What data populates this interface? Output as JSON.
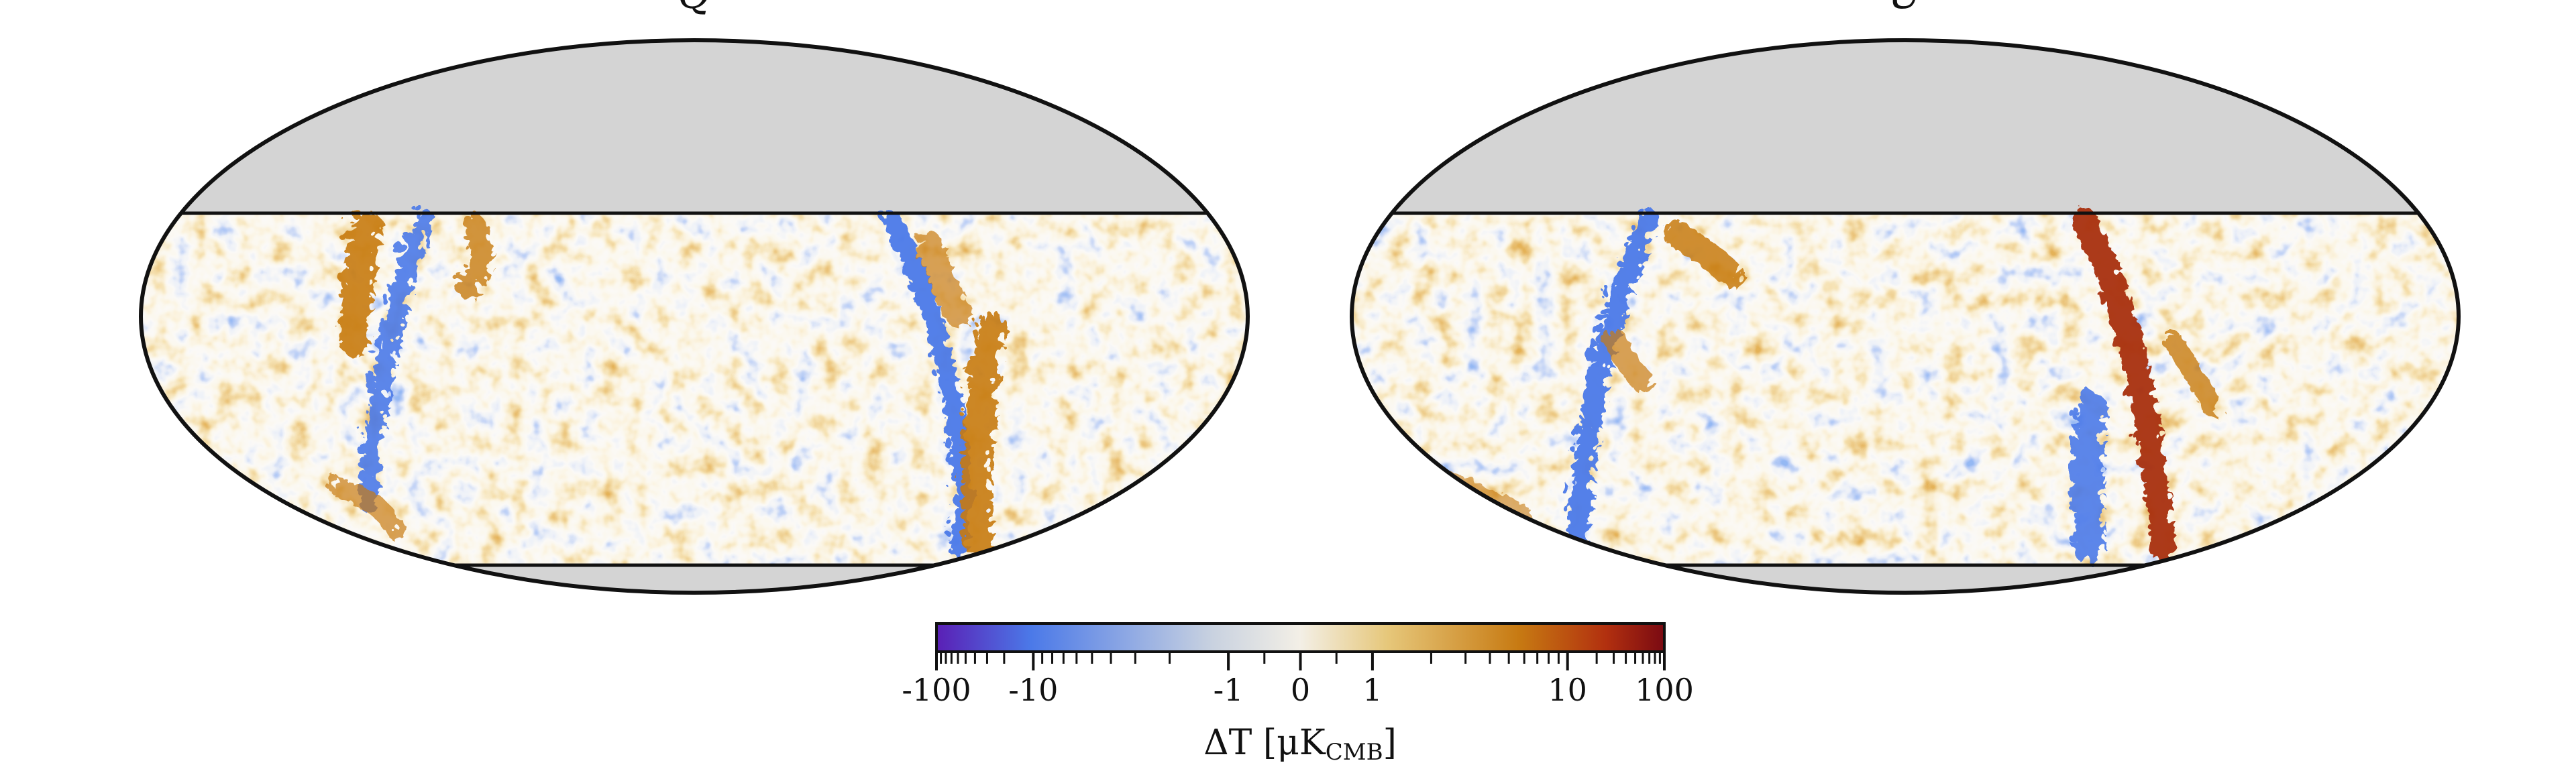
{
  "panels": [
    {
      "title": "Q"
    },
    {
      "title": "U"
    }
  ],
  "chart_data": {
    "type": "heatmap",
    "projection": "Mollweide",
    "panels": [
      "Q",
      "U"
    ],
    "masked_color": "#d4d4d4",
    "colorbar": {
      "label": "ΔT [μK_CMB]",
      "label_main": "ΔT [μK",
      "label_sub": "CMB",
      "label_end": "]",
      "scale": "symlog",
      "range": [
        -100,
        100
      ],
      "ticks": [
        -100,
        -10,
        -1,
        0,
        1,
        10,
        100
      ],
      "tick_labels": [
        "-100",
        "-10",
        "-1",
        "0",
        "1",
        "10",
        "100"
      ],
      "colors": [
        "#5a1fb5",
        "#4b79e8",
        "#c9d2e0",
        "#f3efe6",
        "#e6c77a",
        "#c77a12",
        "#b2300f",
        "#7a0a12"
      ]
    }
  }
}
